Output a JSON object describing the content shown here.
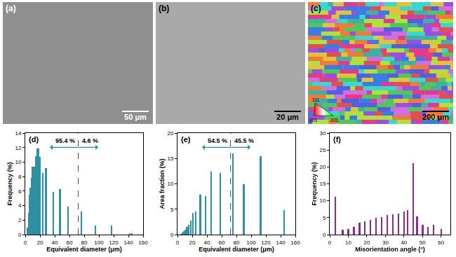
{
  "chart_data": [
    {
      "panel": "(d)",
      "type": "bar",
      "x": [
        3,
        5,
        6,
        7,
        9,
        10,
        12,
        14,
        16,
        18,
        20,
        24,
        28,
        38,
        47,
        58,
        76,
        95,
        117,
        142,
        145
      ],
      "values": [
        1.0,
        3.0,
        5.5,
        6.5,
        7.8,
        9.4,
        9.4,
        10.8,
        11.9,
        11.9,
        10.7,
        8.5,
        9.2,
        5.9,
        6.3,
        3.9,
        3.2,
        1.3,
        1.3,
        0.2,
        0.2
      ],
      "color": "#2f8fa3",
      "xlabel": "Equivalent diameter (μm)",
      "ylabel": "Frequency (%)",
      "xlim": [
        0,
        160
      ],
      "xticks": [
        0,
        20,
        40,
        60,
        80,
        100,
        120,
        140,
        160
      ],
      "ylim": [
        0,
        14
      ],
      "yticks": [
        0,
        2,
        4,
        6,
        8,
        10,
        12,
        14
      ],
      "grid": false,
      "split": {
        "x": 72,
        "left": "95.4 %",
        "right": "4.6 %"
      }
    },
    {
      "panel": "(e)",
      "type": "bar",
      "x": [
        3,
        5,
        7,
        9,
        11,
        13,
        15,
        18,
        21,
        25,
        31,
        38,
        46,
        58,
        75,
        90,
        113,
        145
      ],
      "values": [
        0.05,
        0.2,
        0.4,
        0.7,
        1.0,
        1.5,
        2.0,
        2.7,
        4.3,
        4.6,
        7.8,
        7.6,
        12.4,
        12.1,
        16.0,
        9.9,
        15.4,
        4.8
      ],
      "color": "#2f8fa3",
      "xlabel": "Equivalent diameter (μm)",
      "ylabel": "Area fraction (%)",
      "xlim": [
        0,
        160
      ],
      "xticks": [
        0,
        20,
        40,
        60,
        80,
        100,
        120,
        140,
        160
      ],
      "ylim": [
        0,
        20
      ],
      "yticks": [
        0,
        5,
        10,
        15,
        20
      ],
      "grid": false,
      "split": {
        "x": 72,
        "left": "54.5 %",
        "right": "45.5 %"
      }
    },
    {
      "panel": "(f)",
      "type": "bar",
      "x": [
        3,
        7,
        10,
        13,
        16,
        19,
        22,
        25,
        28,
        31,
        34,
        37,
        40,
        42,
        45,
        47,
        50,
        53,
        56,
        60
      ],
      "values": [
        11.2,
        1.5,
        1.6,
        2.3,
        3.5,
        4.0,
        4.3,
        5.0,
        5.2,
        5.8,
        6.0,
        6.2,
        6.8,
        7.3,
        21.2,
        5.3,
        2.8,
        2.3,
        2.8,
        1.6
      ],
      "color": "#8b2a8f",
      "xlabel": "Misorientation angle (°)",
      "ylabel": "Frequency (%)",
      "xlim": [
        0,
        65
      ],
      "xticks": [
        0,
        10,
        20,
        30,
        40,
        50,
        60
      ],
      "ylim": [
        0,
        30
      ],
      "yticks": [
        0,
        5,
        10,
        15,
        20,
        25,
        30
      ],
      "grid": false
    }
  ],
  "images": [
    {
      "label": "(a)",
      "scale_bar": "50 μm"
    },
    {
      "label": "(b)",
      "scale_bar": "20 μm"
    },
    {
      "label": "(c)",
      "scale_bar": "200 μm",
      "ipf_legend": [
        "111",
        "001",
        "101"
      ]
    }
  ]
}
